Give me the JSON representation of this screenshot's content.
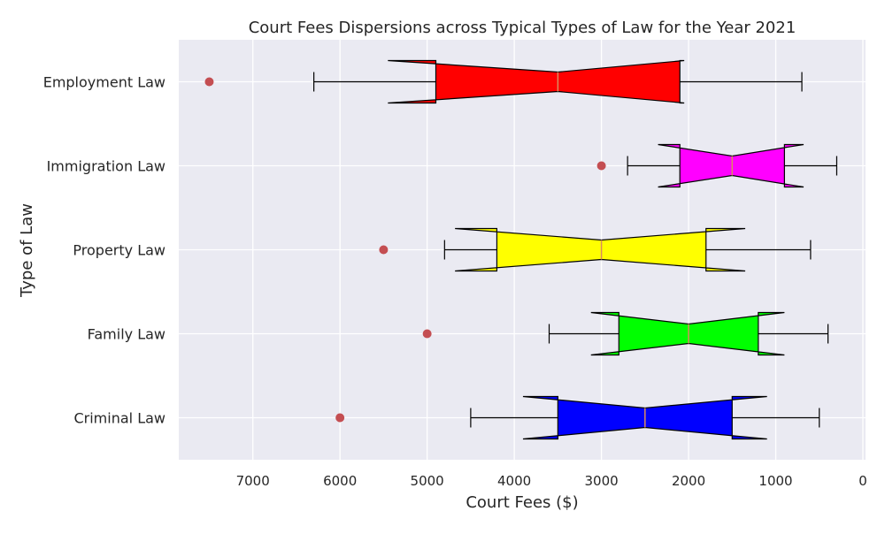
{
  "chart_data": {
    "type": "boxplot",
    "orientation": "horizontal",
    "notched": true,
    "title": "Court Fees Dispersions across Typical Types of Law for the Year 2021",
    "xlabel": "Court Fees ($)",
    "ylabel": "Type of Law",
    "x_inverted": true,
    "xlim": [
      0,
      7850
    ],
    "xticks": [
      7000,
      6000,
      5000,
      4000,
      3000,
      2000,
      1000,
      0
    ],
    "grid": true,
    "categories": [
      "Employment Law",
      "Immigration Law",
      "Property Law",
      "Family Law",
      "Criminal Law"
    ],
    "series": [
      {
        "name": "Employment Law",
        "min": 700,
        "q1": 2100,
        "median": 3500,
        "q3": 4900,
        "max": 6300,
        "notch_low": 2050,
        "notch_high": 5450,
        "outliers": [
          7500
        ],
        "color": "#ff0000"
      },
      {
        "name": "Immigration Law",
        "min": 300,
        "q1": 900,
        "median": 1500,
        "q3": 2100,
        "max": 2700,
        "notch_low": 680,
        "notch_high": 2350,
        "outliers": [
          3000
        ],
        "color": "#ff00ff"
      },
      {
        "name": "Property Law",
        "min": 600,
        "q1": 1800,
        "median": 3000,
        "q3": 4200,
        "max": 4800,
        "notch_low": 1350,
        "notch_high": 4680,
        "outliers": [
          5500
        ],
        "color": "#ffff00"
      },
      {
        "name": "Family Law",
        "min": 400,
        "q1": 1200,
        "median": 2000,
        "q3": 2800,
        "max": 3600,
        "notch_low": 900,
        "notch_high": 3120,
        "outliers": [
          5000
        ],
        "color": "#00ff00"
      },
      {
        "name": "Criminal Law",
        "min": 500,
        "q1": 1500,
        "median": 2500,
        "q3": 3500,
        "max": 4500,
        "notch_low": 1100,
        "notch_high": 3900,
        "outliers": [
          6000
        ],
        "color": "#0000ff"
      }
    ],
    "outlier_color": "#c44e52"
  }
}
